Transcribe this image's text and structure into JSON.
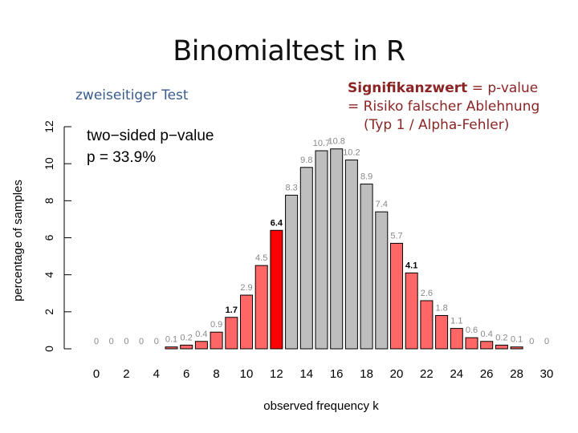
{
  "slide": {
    "title": "Binomialtest in R",
    "subtitle": "zweiseitiger Test",
    "note_bold": "Signifikanzwert",
    "note_line1_rest": " = p-value",
    "note_line2": "= Risiko falscher Ablehnung",
    "note_line3": "(Typ 1 / Alpha-Fehler)"
  },
  "chart_data": {
    "type": "bar",
    "x": [
      0,
      1,
      2,
      3,
      4,
      5,
      6,
      7,
      8,
      9,
      10,
      11,
      12,
      13,
      14,
      15,
      16,
      17,
      18,
      19,
      20,
      21,
      22,
      23,
      24,
      25,
      26,
      27,
      28,
      29,
      30
    ],
    "values": [
      0,
      0,
      0,
      0,
      0,
      0.1,
      0.2,
      0.4,
      0.9,
      1.7,
      2.9,
      4.5,
      6.4,
      8.3,
      9.8,
      10.7,
      10.8,
      10.2,
      8.9,
      7.4,
      5.7,
      4.1,
      2.6,
      1.8,
      1.1,
      0.6,
      0.4,
      0.2,
      0.1,
      0,
      0
    ],
    "value_labels": [
      "0",
      "0",
      "0",
      "0",
      "0",
      "0.1",
      "0.2",
      "0.4",
      "0.9",
      "1.7",
      "2.9",
      "4.5",
      "6.4",
      "8.3",
      "9.8",
      "10.7",
      "10.8",
      "10.2",
      "8.9",
      "7.4",
      "5.7",
      "4.1",
      "2.6",
      "1.8",
      "1.1",
      "0.6",
      "0.4",
      "0.2",
      "0.1",
      "0",
      "0"
    ],
    "bold_label_indices": [
      9,
      12,
      21
    ],
    "bar_status": [
      "rejected",
      "rejected",
      "rejected",
      "rejected",
      "rejected",
      "rejected",
      "rejected",
      "rejected",
      "rejected",
      "rejected",
      "rejected",
      "rejected",
      "observed",
      "accepted",
      "accepted",
      "accepted",
      "accepted",
      "accepted",
      "accepted",
      "accepted",
      "rejected",
      "rejected",
      "rejected",
      "rejected",
      "rejected",
      "rejected",
      "rejected",
      "rejected",
      "rejected",
      "rejected",
      "rejected"
    ],
    "colors": {
      "rejected": "#ff6666",
      "observed": "#ff0000",
      "accepted": "#bebebe",
      "outline": "#000000"
    },
    "xlabel": "observed frequency k",
    "ylabel": "percentage of samples",
    "xticks": [
      "0",
      "2",
      "4",
      "6",
      "8",
      "10",
      "12",
      "14",
      "16",
      "18",
      "20",
      "22",
      "24",
      "26",
      "28",
      "30"
    ],
    "yticks": [
      "0",
      "2",
      "4",
      "6",
      "8",
      "10",
      "12"
    ],
    "ylim": [
      0,
      12
    ],
    "annotation_line1": "two−sided p−value",
    "annotation_line2": "p = 33.9%",
    "grid": false
  }
}
